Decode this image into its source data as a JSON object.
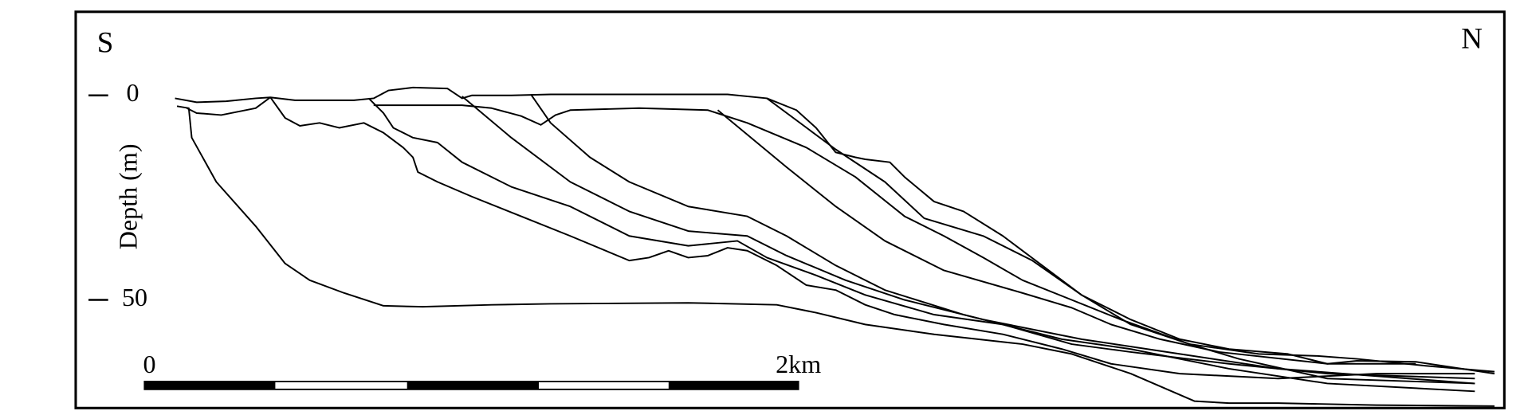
{
  "labels": {
    "south": "S",
    "north": "N"
  },
  "depth_axis": {
    "title": "Depth (m)",
    "ticks": [
      "0",
      "50"
    ]
  },
  "scale_bar": {
    "start": "0",
    "end": "2km"
  }
}
